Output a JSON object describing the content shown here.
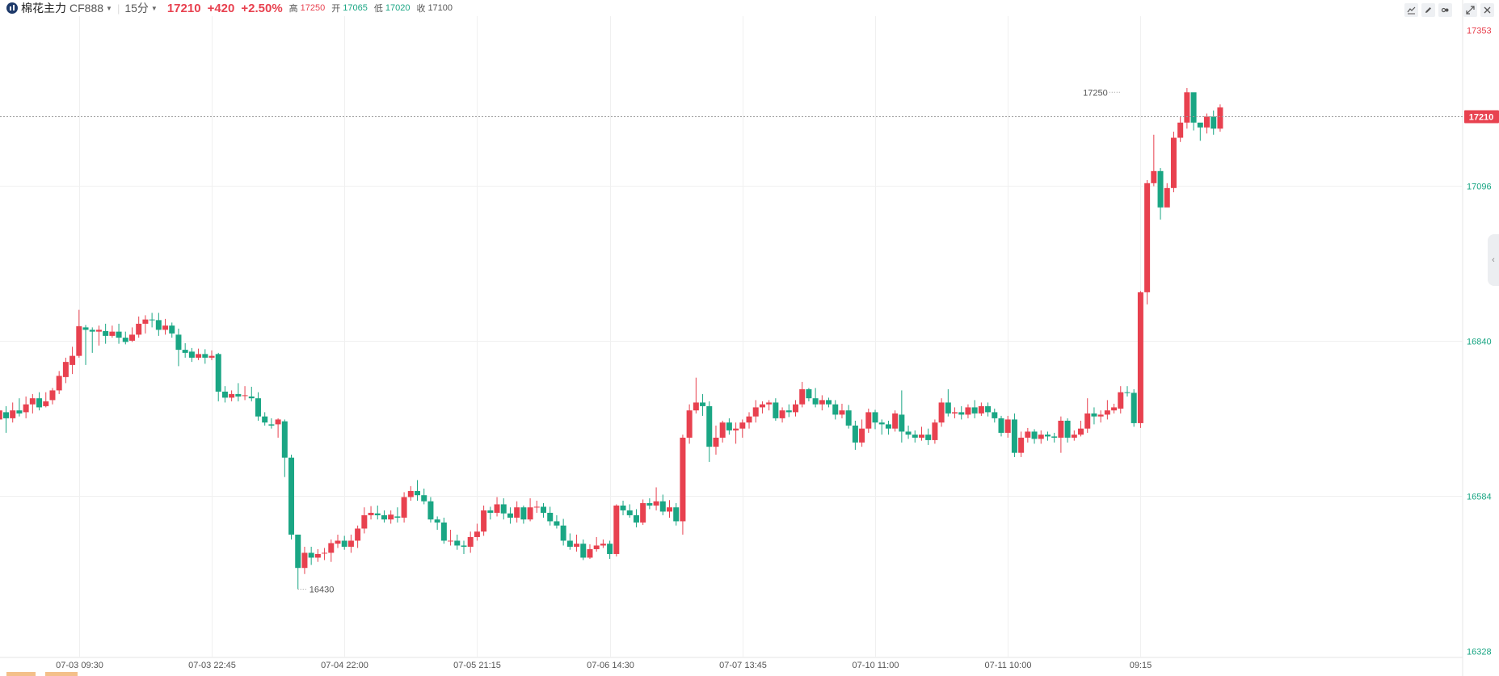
{
  "header": {
    "name": "棉花主力",
    "code": "CF888",
    "period": "15分",
    "price": "17210",
    "change": "+420",
    "change_pct": "+2.50%",
    "high_label": "高",
    "high": "17250",
    "open_label": "开",
    "open": "17065",
    "low_label": "低",
    "low": "17020",
    "close_label": "收",
    "close": "17100"
  },
  "toolbar": {
    "icons": [
      "line-chart-icon",
      "pencil-icon",
      "indicator-icon",
      "expand-icon",
      "close-icon"
    ]
  },
  "side_tab": {
    "icon": "collapse-left-icon",
    "glyph": "‹"
  },
  "colors": {
    "up": "#e8414f",
    "down": "#1aa684",
    "grid": "#f0f0f0",
    "axis_text_up": "#e8414f",
    "axis_text_down": "#1aa684"
  },
  "chart_data": {
    "type": "candlestick",
    "title": "",
    "ylim": [
      16328,
      17353
    ],
    "y_ticks": [
      17353,
      17096,
      16840,
      16584,
      16328
    ],
    "x_ticks": [
      "07-03 09:30",
      "07-03 22:45",
      "07-04 22:00",
      "07-05 21:15",
      "07-06 14:30",
      "07-07 13:45",
      "07-10 11:00",
      "07-11 10:00",
      "09:15"
    ],
    "x_tick_index": [
      13,
      33,
      53,
      73,
      93,
      113,
      133,
      153,
      173
    ],
    "last_price_label": "17210",
    "last_price": 17210,
    "max_annotation": {
      "text": "17250",
      "value": 17250,
      "index": 170
    },
    "min_annotation": {
      "text": "16430",
      "value": 16430,
      "index": 46
    },
    "candles": [
      [
        16740,
        16735,
        16760,
        16720
      ],
      [
        16710,
        16725,
        16745,
        16700
      ],
      [
        16722,
        16712,
        16732,
        16688
      ],
      [
        16712,
        16725,
        16738,
        16705
      ],
      [
        16725,
        16720,
        16745,
        16715
      ],
      [
        16722,
        16735,
        16748,
        16712
      ],
      [
        16735,
        16745,
        16752,
        16720
      ],
      [
        16745,
        16730,
        16755,
        16725
      ],
      [
        16732,
        16740,
        16755,
        16730
      ],
      [
        16742,
        16758,
        16762,
        16735
      ],
      [
        16758,
        16782,
        16790,
        16752
      ],
      [
        16780,
        16805,
        16812,
        16770
      ],
      [
        16800,
        16815,
        16830,
        16785
      ],
      [
        16815,
        16864,
        16891,
        16812
      ],
      [
        16862,
        16858,
        16866,
        16800
      ],
      [
        16858,
        16855,
        16862,
        16820
      ],
      [
        16855,
        16858,
        16865,
        16832
      ],
      [
        16856,
        16848,
        16868,
        16835
      ],
      [
        16848,
        16855,
        16865,
        16845
      ],
      [
        16855,
        16845,
        16868,
        16835
      ],
      [
        16845,
        16838,
        16855,
        16834
      ],
      [
        16840,
        16850,
        16862,
        16838
      ],
      [
        16850,
        16868,
        16880,
        16845
      ],
      [
        16868,
        16875,
        16882,
        16852
      ],
      [
        16875,
        16874,
        16886,
        16862
      ],
      [
        16874,
        16858,
        16886,
        16848
      ],
      [
        16858,
        16865,
        16876,
        16850
      ],
      [
        16865,
        16852,
        16870,
        16845
      ],
      [
        16850,
        16825,
        16860,
        16798
      ],
      [
        16825,
        16820,
        16836,
        16812
      ],
      [
        16822,
        16812,
        16828,
        16805
      ],
      [
        16812,
        16818,
        16827,
        16808
      ],
      [
        16818,
        16812,
        16826,
        16802
      ],
      [
        16812,
        16815,
        16824,
        16808
      ],
      [
        16818,
        16756,
        16820,
        16740
      ],
      [
        16756,
        16746,
        16765,
        16738
      ],
      [
        16746,
        16752,
        16758,
        16740
      ],
      [
        16752,
        16748,
        16770,
        16740
      ],
      [
        16750,
        16750,
        16765,
        16742
      ],
      [
        16748,
        16745,
        16764,
        16740
      ],
      [
        16745,
        16715,
        16755,
        16708
      ],
      [
        16715,
        16705,
        16722,
        16700
      ],
      [
        16702,
        16700,
        16712,
        16695
      ],
      [
        16702,
        16710,
        16712,
        16680
      ],
      [
        16707,
        16647,
        16710,
        16615
      ],
      [
        16647,
        16520,
        16652,
        16512
      ],
      [
        16520,
        16465,
        16520,
        16430
      ],
      [
        16465,
        16490,
        16500,
        16455
      ],
      [
        16490,
        16482,
        16500,
        16470
      ],
      [
        16482,
        16488,
        16496,
        16475
      ],
      [
        16490,
        16490,
        16498,
        16478
      ],
      [
        16490,
        16506,
        16512,
        16475
      ],
      [
        16505,
        16510,
        16520,
        16498
      ],
      [
        16510,
        16500,
        16518,
        16495
      ],
      [
        16500,
        16510,
        16520,
        16490
      ],
      [
        16510,
        16530,
        16535,
        16498
      ],
      [
        16530,
        16552,
        16565,
        16522
      ],
      [
        16552,
        16556,
        16567,
        16545
      ],
      [
        16555,
        16552,
        16568,
        16545
      ],
      [
        16552,
        16545,
        16560,
        16540
      ],
      [
        16545,
        16553,
        16560,
        16538
      ],
      [
        16550,
        16548,
        16565,
        16540
      ],
      [
        16548,
        16582,
        16590,
        16540
      ],
      [
        16582,
        16592,
        16600,
        16576
      ],
      [
        16592,
        16585,
        16610,
        16576
      ],
      [
        16585,
        16575,
        16596,
        16570
      ],
      [
        16575,
        16545,
        16582,
        16540
      ],
      [
        16545,
        16540,
        16550,
        16528
      ],
      [
        16540,
        16510,
        16548,
        16505
      ],
      [
        16510,
        16510,
        16528,
        16502
      ],
      [
        16510,
        16502,
        16520,
        16495
      ],
      [
        16502,
        16500,
        16510,
        16488
      ],
      [
        16500,
        16516,
        16525,
        16490
      ],
      [
        16516,
        16525,
        16538,
        16510
      ],
      [
        16525,
        16560,
        16568,
        16518
      ],
      [
        16560,
        16556,
        16566,
        16545
      ],
      [
        16556,
        16570,
        16582,
        16550
      ],
      [
        16570,
        16555,
        16580,
        16545
      ],
      [
        16555,
        16548,
        16565,
        16538
      ],
      [
        16548,
        16565,
        16575,
        16540
      ],
      [
        16565,
        16545,
        16568,
        16538
      ],
      [
        16545,
        16565,
        16580,
        16542
      ],
      [
        16565,
        16566,
        16576,
        16556
      ],
      [
        16566,
        16556,
        16572,
        16548
      ],
      [
        16556,
        16542,
        16566,
        16535
      ],
      [
        16542,
        16535,
        16552,
        16530
      ],
      [
        16535,
        16510,
        16546,
        16502
      ],
      [
        16510,
        16500,
        16522,
        16495
      ],
      [
        16500,
        16505,
        16520,
        16492
      ],
      [
        16505,
        16482,
        16512,
        16478
      ],
      [
        16482,
        16496,
        16504,
        16480
      ],
      [
        16496,
        16502,
        16516,
        16492
      ],
      [
        16502,
        16505,
        16512,
        16498
      ],
      [
        16505,
        16488,
        16510,
        16480
      ],
      [
        16488,
        16568,
        16570,
        16484
      ],
      [
        16568,
        16560,
        16576,
        16552
      ],
      [
        16560,
        16552,
        16570,
        16548
      ],
      [
        16552,
        16540,
        16562,
        16532
      ],
      [
        16540,
        16572,
        16578,
        16536
      ],
      [
        16572,
        16568,
        16580,
        16562
      ],
      [
        16568,
        16575,
        16598,
        16560
      ],
      [
        16575,
        16558,
        16586,
        16552
      ],
      [
        16558,
        16565,
        16577,
        16548
      ],
      [
        16565,
        16542,
        16572,
        16535
      ],
      [
        16542,
        16680,
        16685,
        16520
      ],
      [
        16680,
        16725,
        16735,
        16670
      ],
      [
        16725,
        16738,
        16779,
        16720
      ],
      [
        16738,
        16732,
        16752,
        16716
      ],
      [
        16732,
        16665,
        16740,
        16640
      ],
      [
        16665,
        16680,
        16700,
        16652
      ],
      [
        16680,
        16705,
        16708,
        16672
      ],
      [
        16705,
        16692,
        16712,
        16685
      ],
      [
        16692,
        16695,
        16705,
        16670
      ],
      [
        16695,
        16705,
        16710,
        16680
      ],
      [
        16705,
        16715,
        16722,
        16695
      ],
      [
        16715,
        16730,
        16742,
        16705
      ],
      [
        16730,
        16735,
        16740,
        16720
      ],
      [
        16735,
        16738,
        16742,
        16725
      ],
      [
        16738,
        16712,
        16745,
        16708
      ],
      [
        16712,
        16725,
        16730,
        16705
      ],
      [
        16725,
        16722,
        16735,
        16714
      ],
      [
        16722,
        16735,
        16742,
        16715
      ],
      [
        16735,
        16760,
        16772,
        16730
      ],
      [
        16760,
        16745,
        16762,
        16740
      ],
      [
        16745,
        16735,
        16762,
        16730
      ],
      [
        16735,
        16742,
        16750,
        16725
      ],
      [
        16742,
        16735,
        16746,
        16730
      ],
      [
        16735,
        16718,
        16742,
        16710
      ],
      [
        16718,
        16725,
        16736,
        16712
      ],
      [
        16725,
        16700,
        16734,
        16695
      ],
      [
        16700,
        16672,
        16708,
        16660
      ],
      [
        16672,
        16695,
        16710,
        16665
      ],
      [
        16695,
        16722,
        16728,
        16688
      ],
      [
        16722,
        16705,
        16726,
        16694
      ],
      [
        16705,
        16702,
        16710,
        16685
      ],
      [
        16702,
        16695,
        16708,
        16685
      ],
      [
        16695,
        16720,
        16725,
        16690
      ],
      [
        16718,
        16690,
        16758,
        16672
      ],
      [
        16690,
        16685,
        16700,
        16678
      ],
      [
        16685,
        16680,
        16692,
        16672
      ],
      [
        16680,
        16685,
        16698,
        16675
      ],
      [
        16685,
        16676,
        16695,
        16668
      ],
      [
        16676,
        16705,
        16710,
        16670
      ],
      [
        16705,
        16738,
        16745,
        16698
      ],
      [
        16738,
        16720,
        16760,
        16715
      ],
      [
        16720,
        16722,
        16730,
        16712
      ],
      [
        16722,
        16718,
        16732,
        16710
      ],
      [
        16718,
        16730,
        16735,
        16712
      ],
      [
        16730,
        16720,
        16742,
        16712
      ],
      [
        16720,
        16732,
        16738,
        16716
      ],
      [
        16732,
        16722,
        16738,
        16715
      ],
      [
        16722,
        16712,
        16728,
        16705
      ],
      [
        16712,
        16688,
        16716,
        16682
      ],
      [
        16688,
        16710,
        16716,
        16680
      ],
      [
        16710,
        16655,
        16720,
        16648
      ],
      [
        16655,
        16680,
        16690,
        16648
      ],
      [
        16680,
        16690,
        16696,
        16672
      ],
      [
        16690,
        16678,
        16694,
        16670
      ],
      [
        16678,
        16685,
        16692,
        16670
      ],
      [
        16685,
        16682,
        16690,
        16675
      ],
      [
        16682,
        16680,
        16688,
        16672
      ],
      [
        16680,
        16708,
        16715,
        16655
      ],
      [
        16708,
        16680,
        16712,
        16672
      ],
      [
        16680,
        16685,
        16692,
        16675
      ],
      [
        16685,
        16695,
        16708,
        16682
      ],
      [
        16695,
        16720,
        16745,
        16688
      ],
      [
        16720,
        16715,
        16730,
        16702
      ],
      [
        16715,
        16718,
        16725,
        16705
      ],
      [
        16718,
        16725,
        16742,
        16710
      ],
      [
        16725,
        16730,
        16736,
        16720
      ],
      [
        16728,
        16755,
        16765,
        16720
      ],
      [
        16755,
        16754,
        16765,
        16748
      ],
      [
        16754,
        16704,
        16760,
        16698
      ],
      [
        16704,
        16920,
        16922,
        16696
      ],
      [
        16920,
        17100,
        17105,
        16900
      ],
      [
        17100,
        17120,
        17180,
        17095
      ],
      [
        17120,
        17060,
        17125,
        17040
      ],
      [
        17060,
        17092,
        17100,
        17070
      ],
      [
        17092,
        17175,
        17185,
        17085
      ],
      [
        17175,
        17200,
        17210,
        17168
      ],
      [
        17200,
        17250,
        17257,
        17190
      ],
      [
        17250,
        17200,
        17210,
        17187
      ],
      [
        17200,
        17192,
        17197,
        17170
      ],
      [
        17192,
        17210,
        17215,
        17182
      ],
      [
        17210,
        17190,
        17220,
        17180
      ],
      [
        17190,
        17225,
        17230,
        17185
      ]
    ]
  }
}
